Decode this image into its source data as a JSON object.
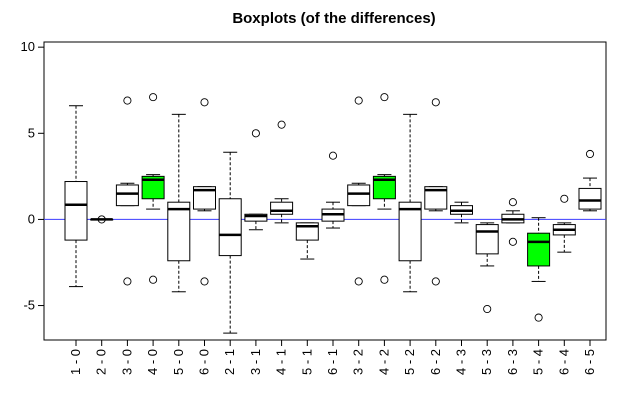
{
  "chart_data": {
    "type": "boxplot",
    "title": "Boxplots (of the differences)",
    "xlabel": "",
    "ylabel": "",
    "ylim": [
      -7,
      10.3
    ],
    "yticks": [
      -5,
      0,
      5,
      10
    ],
    "ytick_labels": [
      "-5",
      "0",
      "5",
      "10"
    ],
    "reference_line": {
      "y": 0,
      "color": "#3b3bff"
    },
    "colors": {
      "highlight": "#00ff00",
      "default": "#ffffff",
      "stroke": "#000000"
    },
    "categories": [
      "1 - 0",
      "2 - 0",
      "3 - 0",
      "4 - 0",
      "5 - 0",
      "6 - 0",
      "2 - 1",
      "3 - 1",
      "4 - 1",
      "5 - 1",
      "6 - 1",
      "3 - 2",
      "4 - 2",
      "5 - 2",
      "6 - 2",
      "4 - 3",
      "5 - 3",
      "6 - 3",
      "5 - 4",
      "6 - 4",
      "6 - 5"
    ],
    "boxes": [
      {
        "label": "1 - 0",
        "whisker_low": -3.9,
        "q1": -1.2,
        "median": 0.85,
        "q3": 2.2,
        "whisker_high": 6.6,
        "outliers": [],
        "highlight": false
      },
      {
        "label": "2 - 0",
        "whisker_low": 0.0,
        "q1": 0.0,
        "median": 0.0,
        "q3": 0.0,
        "whisker_high": 0.0,
        "outliers": [
          0.0
        ],
        "highlight": false
      },
      {
        "label": "3 - 0",
        "whisker_low": 0.8,
        "q1": 0.8,
        "median": 1.5,
        "q3": 2.0,
        "whisker_high": 2.1,
        "outliers": [
          6.9,
          -3.6
        ],
        "highlight": false
      },
      {
        "label": "4 - 0",
        "whisker_low": 0.6,
        "q1": 1.2,
        "median": 2.3,
        "q3": 2.5,
        "whisker_high": 2.6,
        "outliers": [
          7.1,
          -3.5
        ],
        "highlight": true
      },
      {
        "label": "5 - 0",
        "whisker_low": -4.2,
        "q1": -2.4,
        "median": 0.6,
        "q3": 1.0,
        "whisker_high": 6.1,
        "outliers": [],
        "highlight": false
      },
      {
        "label": "6 - 0",
        "whisker_low": 0.5,
        "q1": 0.6,
        "median": 1.7,
        "q3": 1.9,
        "whisker_high": 1.9,
        "outliers": [
          6.8,
          -3.6
        ],
        "highlight": false
      },
      {
        "label": "2 - 1",
        "whisker_low": -6.6,
        "q1": -2.1,
        "median": -0.9,
        "q3": 1.2,
        "whisker_high": 3.9,
        "outliers": [],
        "highlight": false
      },
      {
        "label": "3 - 1",
        "whisker_low": -0.6,
        "q1": -0.1,
        "median": 0.2,
        "q3": 0.3,
        "whisker_high": 0.3,
        "outliers": [
          5.0
        ],
        "highlight": false
      },
      {
        "label": "4 - 1",
        "whisker_low": -0.2,
        "q1": 0.3,
        "median": 0.5,
        "q3": 1.0,
        "whisker_high": 1.2,
        "outliers": [
          5.5
        ],
        "highlight": false
      },
      {
        "label": "5 - 1",
        "whisker_low": -2.3,
        "q1": -1.2,
        "median": -0.4,
        "q3": -0.2,
        "whisker_high": -0.2,
        "outliers": [],
        "highlight": false
      },
      {
        "label": "6 - 1",
        "whisker_low": -0.5,
        "q1": -0.1,
        "median": 0.3,
        "q3": 0.6,
        "whisker_high": 1.0,
        "outliers": [
          3.7
        ],
        "highlight": false
      },
      {
        "label": "3 - 2",
        "whisker_low": 0.8,
        "q1": 0.8,
        "median": 1.5,
        "q3": 2.0,
        "whisker_high": 2.1,
        "outliers": [
          6.9,
          -3.6
        ],
        "highlight": false
      },
      {
        "label": "4 - 2",
        "whisker_low": 0.6,
        "q1": 1.2,
        "median": 2.3,
        "q3": 2.5,
        "whisker_high": 2.6,
        "outliers": [
          7.1,
          -3.5
        ],
        "highlight": true
      },
      {
        "label": "5 - 2",
        "whisker_low": -4.2,
        "q1": -2.4,
        "median": 0.6,
        "q3": 1.0,
        "whisker_high": 6.1,
        "outliers": [],
        "highlight": false
      },
      {
        "label": "6 - 2",
        "whisker_low": 0.5,
        "q1": 0.6,
        "median": 1.7,
        "q3": 1.9,
        "whisker_high": 1.9,
        "outliers": [
          6.8,
          -3.6
        ],
        "highlight": false
      },
      {
        "label": "4 - 3",
        "whisker_low": -0.2,
        "q1": 0.3,
        "median": 0.5,
        "q3": 0.8,
        "whisker_high": 1.0,
        "outliers": [],
        "highlight": false
      },
      {
        "label": "5 - 3",
        "whisker_low": -2.7,
        "q1": -2.0,
        "median": -0.7,
        "q3": -0.3,
        "whisker_high": -0.2,
        "outliers": [
          -5.2
        ],
        "highlight": false
      },
      {
        "label": "6 - 3",
        "whisker_low": -0.2,
        "q1": -0.2,
        "median": 0.0,
        "q3": 0.3,
        "whisker_high": 0.5,
        "outliers": [
          1.0,
          -1.3
        ],
        "highlight": false
      },
      {
        "label": "5 - 4",
        "whisker_low": -3.6,
        "q1": -2.7,
        "median": -1.3,
        "q3": -0.8,
        "whisker_high": 0.1,
        "outliers": [
          -5.7
        ],
        "highlight": true
      },
      {
        "label": "6 - 4",
        "whisker_low": -1.9,
        "q1": -0.9,
        "median": -0.6,
        "q3": -0.3,
        "whisker_high": -0.2,
        "outliers": [
          1.2
        ],
        "highlight": false
      },
      {
        "label": "6 - 5",
        "whisker_low": 0.5,
        "q1": 0.6,
        "median": 1.1,
        "q3": 1.8,
        "whisker_high": 2.4,
        "outliers": [
          3.8
        ],
        "highlight": false
      }
    ]
  }
}
